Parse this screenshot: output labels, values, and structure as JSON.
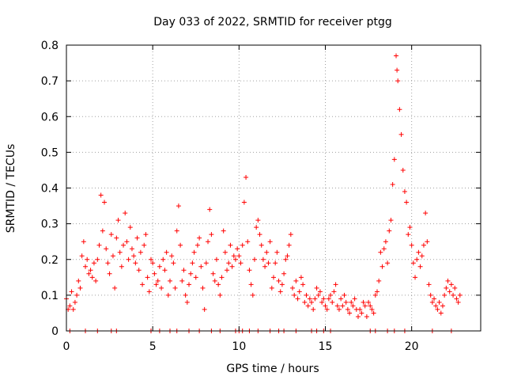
{
  "chart_data": {
    "type": "scatter",
    "title": "Day 033 of 2022, SRMTID for receiver ptgg",
    "xlabel": "GPS time / hours",
    "ylabel": "SRMTID / TECUs",
    "xlim": [
      0,
      24
    ],
    "ylim": [
      0,
      0.8
    ],
    "xticks": [
      0,
      5,
      10,
      15,
      20
    ],
    "xtick_labels": [
      "0",
      "5",
      "10",
      "15",
      "20"
    ],
    "yticks": [
      0,
      0.1,
      0.2,
      0.3,
      0.4,
      0.5,
      0.6,
      0.7,
      0.8
    ],
    "ytick_labels": [
      "0",
      "0.1",
      "0.2",
      "0.3",
      "0.4",
      "0.5",
      "0.6",
      "0.7",
      "0.8"
    ],
    "grid": true,
    "marker": "plus",
    "color": "#ff0000",
    "series": [
      {
        "name": "SRMTID",
        "points": [
          [
            0.0,
            0.09
          ],
          [
            0.1,
            0.06
          ],
          [
            0.2,
            0.07
          ],
          [
            0.3,
            0.11
          ],
          [
            0.4,
            0.06
          ],
          [
            0.5,
            0.08
          ],
          [
            0.6,
            0.1
          ],
          [
            0.7,
            0.14
          ],
          [
            0.8,
            0.12
          ],
          [
            0.9,
            0.21
          ],
          [
            1.0,
            0.25
          ],
          [
            1.1,
            0.18
          ],
          [
            1.2,
            0.2
          ],
          [
            1.3,
            0.16
          ],
          [
            1.4,
            0.17
          ],
          [
            1.5,
            0.15
          ],
          [
            1.6,
            0.19
          ],
          [
            1.7,
            0.14
          ],
          [
            1.8,
            0.2
          ],
          [
            1.9,
            0.24
          ],
          [
            2.0,
            0.38
          ],
          [
            2.1,
            0.28
          ],
          [
            2.2,
            0.36
          ],
          [
            2.3,
            0.23
          ],
          [
            2.4,
            0.19
          ],
          [
            2.5,
            0.16
          ],
          [
            2.6,
            0.27
          ],
          [
            2.7,
            0.21
          ],
          [
            2.8,
            0.12
          ],
          [
            2.9,
            0.26
          ],
          [
            3.0,
            0.31
          ],
          [
            3.1,
            0.22
          ],
          [
            3.2,
            0.18
          ],
          [
            3.3,
            0.24
          ],
          [
            3.4,
            0.33
          ],
          [
            3.5,
            0.25
          ],
          [
            3.6,
            0.2
          ],
          [
            3.7,
            0.29
          ],
          [
            3.8,
            0.23
          ],
          [
            3.9,
            0.21
          ],
          [
            4.0,
            0.19
          ],
          [
            4.1,
            0.26
          ],
          [
            4.2,
            0.17
          ],
          [
            4.3,
            0.22
          ],
          [
            4.4,
            0.13
          ],
          [
            4.5,
            0.24
          ],
          [
            4.6,
            0.27
          ],
          [
            4.7,
            0.15
          ],
          [
            4.8,
            0.11
          ],
          [
            4.9,
            0.2
          ],
          [
            5.0,
            0.19
          ],
          [
            5.1,
            0.16
          ],
          [
            5.2,
            0.13
          ],
          [
            5.3,
            0.14
          ],
          [
            5.4,
            0.18
          ],
          [
            5.5,
            0.12
          ],
          [
            5.6,
            0.2
          ],
          [
            5.7,
            0.17
          ],
          [
            5.8,
            0.22
          ],
          [
            5.9,
            0.1
          ],
          [
            6.0,
            0.14
          ],
          [
            6.1,
            0.21
          ],
          [
            6.2,
            0.19
          ],
          [
            6.3,
            0.12
          ],
          [
            6.4,
            0.28
          ],
          [
            6.5,
            0.35
          ],
          [
            6.6,
            0.24
          ],
          [
            6.7,
            0.14
          ],
          [
            6.8,
            0.17
          ],
          [
            6.9,
            0.1
          ],
          [
            7.0,
            0.08
          ],
          [
            7.1,
            0.13
          ],
          [
            7.2,
            0.16
          ],
          [
            7.3,
            0.19
          ],
          [
            7.4,
            0.22
          ],
          [
            7.5,
            0.15
          ],
          [
            7.6,
            0.24
          ],
          [
            7.7,
            0.26
          ],
          [
            7.8,
            0.18
          ],
          [
            7.9,
            0.12
          ],
          [
            8.0,
            0.06
          ],
          [
            8.1,
            0.19
          ],
          [
            8.2,
            0.25
          ],
          [
            8.3,
            0.34
          ],
          [
            8.4,
            0.27
          ],
          [
            8.5,
            0.16
          ],
          [
            8.6,
            0.14
          ],
          [
            8.7,
            0.2
          ],
          [
            8.8,
            0.13
          ],
          [
            8.9,
            0.1
          ],
          [
            9.0,
            0.15
          ],
          [
            9.1,
            0.28
          ],
          [
            9.2,
            0.22
          ],
          [
            9.3,
            0.17
          ],
          [
            9.4,
            0.19
          ],
          [
            9.5,
            0.24
          ],
          [
            9.6,
            0.18
          ],
          [
            9.7,
            0.21
          ],
          [
            9.8,
            0.2
          ],
          [
            9.9,
            0.23
          ],
          [
            10.0,
            0.21
          ],
          [
            10.1,
            0.19
          ],
          [
            10.2,
            0.24
          ],
          [
            10.3,
            0.36
          ],
          [
            10.4,
            0.43
          ],
          [
            10.5,
            0.25
          ],
          [
            10.6,
            0.17
          ],
          [
            10.7,
            0.13
          ],
          [
            10.8,
            0.1
          ],
          [
            10.9,
            0.2
          ],
          [
            11.0,
            0.29
          ],
          [
            11.1,
            0.31
          ],
          [
            11.2,
            0.27
          ],
          [
            11.3,
            0.24
          ],
          [
            11.4,
            0.2
          ],
          [
            11.5,
            0.18
          ],
          [
            11.6,
            0.22
          ],
          [
            11.7,
            0.19
          ],
          [
            11.8,
            0.25
          ],
          [
            11.9,
            0.12
          ],
          [
            12.0,
            0.15
          ],
          [
            12.1,
            0.19
          ],
          [
            12.2,
            0.22
          ],
          [
            12.3,
            0.14
          ],
          [
            12.4,
            0.11
          ],
          [
            12.5,
            0.13
          ],
          [
            12.6,
            0.16
          ],
          [
            12.7,
            0.2
          ],
          [
            12.8,
            0.21
          ],
          [
            12.9,
            0.24
          ],
          [
            13.0,
            0.27
          ],
          [
            13.1,
            0.12
          ],
          [
            13.2,
            0.1
          ],
          [
            13.3,
            0.14
          ],
          [
            13.4,
            0.09
          ],
          [
            13.5,
            0.11
          ],
          [
            13.6,
            0.15
          ],
          [
            13.7,
            0.13
          ],
          [
            13.8,
            0.08
          ],
          [
            13.9,
            0.1
          ],
          [
            14.0,
            0.07
          ],
          [
            14.1,
            0.09
          ],
          [
            14.2,
            0.08
          ],
          [
            14.3,
            0.06
          ],
          [
            14.4,
            0.09
          ],
          [
            14.5,
            0.12
          ],
          [
            14.6,
            0.1
          ],
          [
            14.7,
            0.11
          ],
          [
            14.8,
            0.08
          ],
          [
            14.9,
            0.09
          ],
          [
            15.0,
            0.07
          ],
          [
            15.1,
            0.06
          ],
          [
            15.2,
            0.09
          ],
          [
            15.3,
            0.1
          ],
          [
            15.4,
            0.08
          ],
          [
            15.5,
            0.11
          ],
          [
            15.6,
            0.13
          ],
          [
            15.7,
            0.07
          ],
          [
            15.8,
            0.06
          ],
          [
            15.9,
            0.09
          ],
          [
            16.0,
            0.07
          ],
          [
            16.1,
            0.1
          ],
          [
            16.2,
            0.08
          ],
          [
            16.3,
            0.06
          ],
          [
            16.4,
            0.05
          ],
          [
            16.5,
            0.08
          ],
          [
            16.6,
            0.07
          ],
          [
            16.7,
            0.09
          ],
          [
            16.8,
            0.06
          ],
          [
            16.9,
            0.04
          ],
          [
            17.0,
            0.06
          ],
          [
            17.1,
            0.05
          ],
          [
            17.2,
            0.08
          ],
          [
            17.3,
            0.07
          ],
          [
            17.4,
            0.04
          ],
          [
            17.5,
            0.08
          ],
          [
            17.6,
            0.07
          ],
          [
            17.7,
            0.06
          ],
          [
            17.8,
            0.05
          ],
          [
            17.9,
            0.1
          ],
          [
            18.0,
            0.11
          ],
          [
            18.1,
            0.14
          ],
          [
            18.2,
            0.22
          ],
          [
            18.3,
            0.18
          ],
          [
            18.4,
            0.23
          ],
          [
            18.5,
            0.25
          ],
          [
            18.6,
            0.19
          ],
          [
            18.7,
            0.28
          ],
          [
            18.8,
            0.31
          ],
          [
            18.9,
            0.41
          ],
          [
            19.0,
            0.48
          ],
          [
            19.1,
            0.77
          ],
          [
            19.15,
            0.73
          ],
          [
            19.2,
            0.7
          ],
          [
            19.3,
            0.62
          ],
          [
            19.4,
            0.55
          ],
          [
            19.5,
            0.45
          ],
          [
            19.6,
            0.39
          ],
          [
            19.7,
            0.36
          ],
          [
            19.8,
            0.27
          ],
          [
            19.9,
            0.29
          ],
          [
            20.0,
            0.24
          ],
          [
            20.1,
            0.19
          ],
          [
            20.2,
            0.15
          ],
          [
            20.3,
            0.2
          ],
          [
            20.4,
            0.22
          ],
          [
            20.5,
            0.18
          ],
          [
            20.6,
            0.21
          ],
          [
            20.7,
            0.24
          ],
          [
            20.8,
            0.33
          ],
          [
            20.9,
            0.25
          ],
          [
            21.0,
            0.13
          ],
          [
            21.1,
            0.1
          ],
          [
            21.2,
            0.08
          ],
          [
            21.3,
            0.09
          ],
          [
            21.4,
            0.07
          ],
          [
            21.5,
            0.06
          ],
          [
            21.6,
            0.08
          ],
          [
            21.7,
            0.05
          ],
          [
            21.8,
            0.07
          ],
          [
            21.9,
            0.1
          ],
          [
            22.0,
            0.12
          ],
          [
            22.1,
            0.14
          ],
          [
            22.2,
            0.11
          ],
          [
            22.3,
            0.13
          ],
          [
            22.4,
            0.1
          ],
          [
            22.5,
            0.12
          ],
          [
            22.6,
            0.09
          ],
          [
            22.7,
            0.08
          ],
          [
            22.8,
            0.1
          ],
          [
            0.2,
            0.0
          ],
          [
            1.1,
            0.0
          ],
          [
            1.8,
            0.0
          ],
          [
            2.6,
            0.0
          ],
          [
            2.9,
            0.0
          ],
          [
            4.9,
            0.0
          ],
          [
            5.4,
            0.0
          ],
          [
            6.0,
            0.0
          ],
          [
            6.4,
            0.0
          ],
          [
            7.1,
            0.0
          ],
          [
            7.7,
            0.0
          ],
          [
            8.4,
            0.0
          ],
          [
            8.9,
            0.0
          ],
          [
            9.8,
            0.0
          ],
          [
            10.0,
            0.0
          ],
          [
            10.2,
            0.0
          ],
          [
            10.6,
            0.0
          ],
          [
            11.1,
            0.0
          ],
          [
            11.8,
            0.0
          ],
          [
            12.3,
            0.0
          ],
          [
            12.6,
            0.0
          ],
          [
            13.3,
            0.0
          ],
          [
            14.2,
            0.0
          ],
          [
            14.5,
            0.0
          ],
          [
            14.9,
            0.0
          ],
          [
            15.3,
            0.0
          ],
          [
            17.6,
            0.0
          ],
          [
            17.9,
            0.0
          ],
          [
            18.6,
            0.0
          ],
          [
            19.0,
            0.0
          ],
          [
            19.6,
            0.0
          ],
          [
            21.2,
            0.0
          ],
          [
            22.3,
            0.0
          ]
        ]
      }
    ]
  }
}
